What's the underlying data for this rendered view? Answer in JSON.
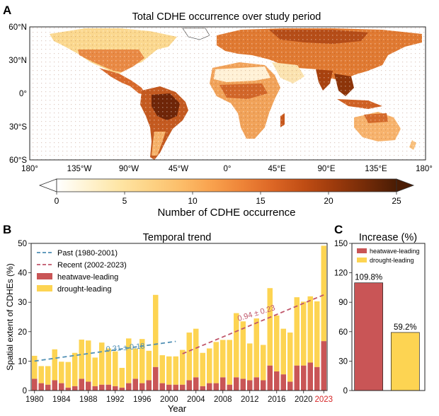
{
  "colors": {
    "heatwave": "#c95556",
    "drought": "#fdd452",
    "past_trend": "#4f8fb4",
    "recent_trend": "#c0566a",
    "highlight_year": "#d62728",
    "map_ocean": "#ffffff",
    "map_land_low": "#fff5dc",
    "map_land_high": "#5a1d05"
  },
  "panel_a": {
    "letter": "A",
    "title": "Total CDHE occurrence over study period",
    "lat_labels": [
      "60°N",
      "30°N",
      "0°",
      "30°S",
      "60°S"
    ],
    "lon_labels": [
      "180°",
      "135°W",
      "90°W",
      "45°W",
      "0°",
      "45°E",
      "90°E",
      "135°E",
      "180°"
    ],
    "colorbar": {
      "label": "Number of CDHE occurrence",
      "ticks": [
        "0",
        "5",
        "10",
        "15",
        "20",
        "25"
      ],
      "min": 0,
      "max": 25,
      "colors": [
        "#ffffff",
        "#fff3d2",
        "#fee6a6",
        "#fdd386",
        "#fcbe6a",
        "#f9a24e",
        "#ee8438",
        "#dc6625",
        "#c04d14",
        "#9c3a0c",
        "#742b08",
        "#4a1c04"
      ]
    }
  },
  "panel_b": {
    "letter": "B",
    "title": "Temporal trend",
    "legend": {
      "past": "Past (1980-2001)",
      "recent": "Recent (2002-2023)",
      "heatwave": "heatwave-leading",
      "drought": "drought-leading"
    },
    "past_trend_label": "0.31 ± 0.18",
    "recent_trend_label": "0.94 ± 0.23"
  },
  "panel_c": {
    "letter": "C",
    "title": "Increase (%)",
    "legend": {
      "heatwave": "heatwave-leading",
      "drought": "drought-leading"
    },
    "bar_labels": [
      "109.8%",
      "59.2%"
    ]
  },
  "chart_data": [
    {
      "type": "bar",
      "stacked": true,
      "title": "Temporal trend",
      "xlabel": "Year",
      "ylabel": "Spatial extent of CDHEs (%)",
      "ylim": [
        0,
        50
      ],
      "yticks": [
        0,
        10,
        20,
        30,
        40,
        50
      ],
      "xticks": [
        1980,
        1984,
        1988,
        1992,
        1996,
        2000,
        2004,
        2008,
        2012,
        2016,
        2020,
        2023
      ],
      "highlight_tick": 2023,
      "categories": [
        1980,
        1981,
        1982,
        1983,
        1984,
        1985,
        1986,
        1987,
        1988,
        1989,
        1990,
        1991,
        1992,
        1993,
        1994,
        1995,
        1996,
        1997,
        1998,
        1999,
        2000,
        2001,
        2002,
        2003,
        2004,
        2005,
        2006,
        2007,
        2008,
        2009,
        2010,
        2011,
        2012,
        2013,
        2014,
        2015,
        2016,
        2017,
        2018,
        2019,
        2020,
        2021,
        2022,
        2023
      ],
      "series": [
        {
          "name": "heatwave-leading",
          "values": [
            4.0,
            2.5,
            2.0,
            3.5,
            2.5,
            1.0,
            1.5,
            4.0,
            3.0,
            1.5,
            2.0,
            2.0,
            1.5,
            1.0,
            2.5,
            4.0,
            2.5,
            3.5,
            8.0,
            2.5,
            2.0,
            2.0,
            2.0,
            3.5,
            4.5,
            1.5,
            2.5,
            2.5,
            4.5,
            2.0,
            4.5,
            4.0,
            3.5,
            4.5,
            3.5,
            8.5,
            6.5,
            5.5,
            3.0,
            8.5,
            8.5,
            9.5,
            8.0,
            16.8
          ]
        },
        {
          "name": "drought-leading",
          "values": [
            7.8,
            5.8,
            6.3,
            10.5,
            7.3,
            8.7,
            11.3,
            13.3,
            14.0,
            9.7,
            14.3,
            12.3,
            11.8,
            6.7,
            15.2,
            10.3,
            15.0,
            10.0,
            24.5,
            9.5,
            9.6,
            9.6,
            11.8,
            16.2,
            16.5,
            11.3,
            11.8,
            14.0,
            12.7,
            15.2,
            21.8,
            19.5,
            12.5,
            20.0,
            12.0,
            26.3,
            19.0,
            15.5,
            16.7,
            23.2,
            21.7,
            22.5,
            22.3,
            32.4
          ]
        }
      ],
      "totals": [
        11.8,
        8.3,
        8.3,
        14.0,
        9.8,
        9.7,
        12.8,
        17.3,
        17.0,
        11.2,
        16.3,
        14.3,
        13.3,
        7.7,
        17.7,
        14.3,
        17.5,
        13.5,
        32.5,
        12.0,
        11.6,
        11.6,
        13.8,
        19.7,
        21.0,
        12.8,
        14.3,
        16.5,
        17.2,
        17.2,
        26.3,
        23.5,
        16.0,
        24.5,
        15.5,
        34.8,
        25.5,
        21.0,
        19.7,
        31.7,
        30.2,
        32.0,
        30.3,
        49.2
      ],
      "trend_lines": [
        {
          "name": "Past (1980-2001)",
          "x": [
            1980,
            2001
          ],
          "y": [
            10.0,
            16.7
          ],
          "label": "0.31 ± 0.18"
        },
        {
          "name": "Recent (2002-2023)",
          "x": [
            2002,
            2023
          ],
          "y": [
            12.5,
            32.5
          ],
          "label": "0.94 ± 0.23"
        }
      ]
    },
    {
      "type": "bar",
      "title": "Increase (%)",
      "categories": [
        "heatwave-leading",
        "drought-leading"
      ],
      "values": [
        109.8,
        59.2
      ],
      "ylim": [
        0,
        150
      ],
      "yticks": [
        0,
        30,
        60,
        90,
        120,
        150
      ]
    }
  ]
}
